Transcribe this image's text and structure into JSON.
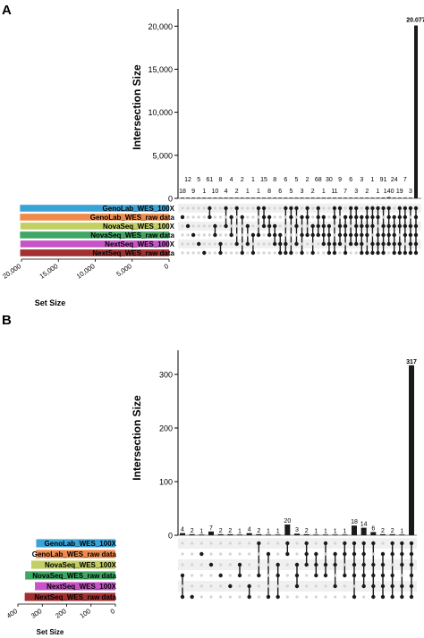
{
  "panels": [
    {
      "label": "A",
      "y_title": "Intersection Size",
      "y_ticks": [
        "0",
        "5,000",
        "10,000",
        "15,000",
        "20,000"
      ],
      "set_size_title": "Set Size",
      "set_size_ticks": [
        "20,000",
        "15,000",
        "10,000",
        "5,000",
        "0"
      ]
    },
    {
      "label": "B",
      "y_title": "Intersection Size",
      "y_ticks": [
        "0",
        "100",
        "200",
        "300"
      ],
      "set_size_title": "Set Size",
      "set_size_ticks": [
        "400",
        "300",
        "200",
        "100",
        "0"
      ]
    }
  ],
  "chart_data": [
    {
      "type": "bar",
      "panel": "A",
      "ylabel": "Intersection Size",
      "ylim": [
        0,
        22000
      ],
      "yticks": [
        0,
        5000,
        10000,
        15000,
        20000
      ],
      "value_labels": [
        "18",
        "12",
        "9",
        "5",
        "1",
        "61",
        "10",
        "8",
        "4",
        "4",
        "2",
        "2",
        "1",
        "1",
        "1",
        "15",
        "8",
        "8",
        "6",
        "6",
        "5",
        "5",
        "3",
        "2",
        "2",
        "68",
        "1",
        "30",
        "11",
        "9",
        "7",
        "6",
        "3",
        "3",
        "2",
        "1",
        "1",
        "91",
        "140",
        "24",
        "19",
        "7",
        "3",
        "20.077"
      ],
      "values": [
        18,
        12,
        9,
        5,
        1,
        61,
        10,
        8,
        4,
        4,
        2,
        2,
        1,
        1,
        1,
        15,
        8,
        8,
        6,
        6,
        5,
        5,
        3,
        2,
        2,
        68,
        1,
        30,
        11,
        9,
        7,
        6,
        3,
        3,
        2,
        1,
        1,
        91,
        140,
        24,
        19,
        7,
        3,
        20077
      ],
      "sets": [
        "GenoLab_WES_100X",
        "GenoLab_WES_raw data",
        "NovaSeq_WES_100X",
        "NovaSeq_WES_raw data",
        "NextSeq_WES_100X",
        "NextSeq_WES_raw data"
      ],
      "set_colors": [
        "#3aa3d6",
        "#f08a4b",
        "#c2cf62",
        "#3fa663",
        "#c654c6",
        "#a33030"
      ],
      "set_sizes": [
        20200,
        20200,
        20150,
        20200,
        20150,
        20180
      ],
      "set_size_label": "Set Size",
      "set_size_ticks": [
        20000,
        15000,
        10000,
        5000,
        0
      ],
      "grid": true,
      "legend": "none"
    },
    {
      "type": "bar",
      "panel": "B",
      "ylabel": "Intersection Size",
      "ylim": [
        0,
        345
      ],
      "yticks": [
        0,
        100,
        200,
        300
      ],
      "value_labels": [
        "4",
        "2",
        "1",
        "7",
        "2",
        "2",
        "1",
        "4",
        "2",
        "1",
        "1",
        "20",
        "3",
        "2",
        "1",
        "1",
        "1",
        "1",
        "18",
        "14",
        "6",
        "2",
        "2",
        "1",
        "317"
      ],
      "values": [
        4,
        2,
        1,
        7,
        2,
        2,
        1,
        4,
        2,
        1,
        1,
        20,
        3,
        2,
        1,
        1,
        1,
        1,
        18,
        14,
        6,
        2,
        2,
        1,
        317
      ],
      "sets": [
        "GenoLab_WES_100X",
        "GenoLab_WES_raw data",
        "NovaSeq_WES_100X",
        "NovaSeq_WES_raw data",
        "NextSeq_WES_100X",
        "NextSeq_WES_raw data"
      ],
      "set_colors": [
        "#3aa3d6",
        "#f08a4b",
        "#c2cf62",
        "#3fa663",
        "#c654c6",
        "#a33030"
      ],
      "set_sizes": [
        325,
        326,
        345,
        370,
        330,
        372
      ],
      "set_size_label": "Set Size",
      "set_size_ticks": [
        400,
        300,
        200,
        100,
        0
      ],
      "grid": true,
      "legend": "none"
    }
  ]
}
